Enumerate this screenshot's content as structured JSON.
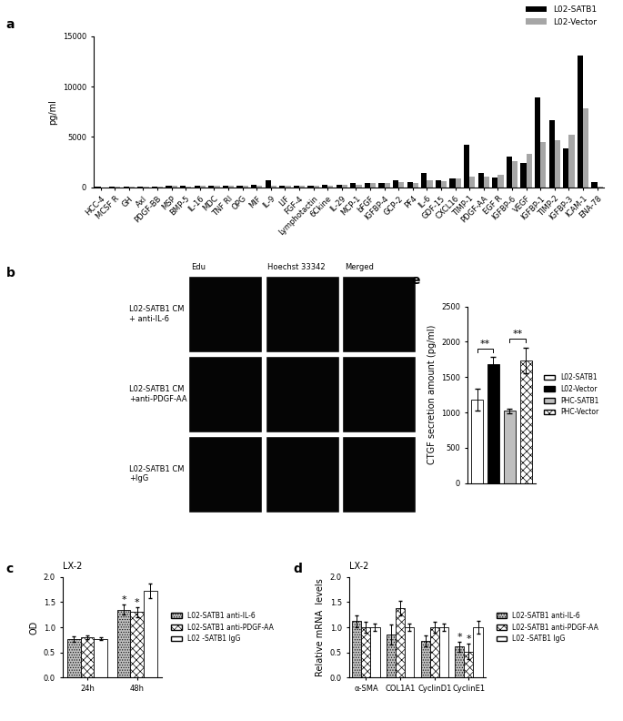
{
  "chart_data": [
    {
      "type": "bar",
      "panel": "a",
      "ylabel": "pg/ml",
      "categories": [
        "HCC-4",
        "MCSF R",
        "GH",
        "Axl",
        "PDGF-BB",
        "MSP",
        "BMP-5",
        "IL-16",
        "MDC",
        "TNF RI",
        "OPG",
        "MIF",
        "IL-9",
        "LIF",
        "FGF-4",
        "Lymphotactin",
        "6Ckine",
        "IL-29",
        "MCP-1",
        "bFGF",
        "IGFBP-4",
        "GCP-2",
        "PF4",
        "IL-6",
        "GDF-15",
        "CXCL16",
        "TIMP-1",
        "PDGF-AA",
        "EGF R",
        "IGFBP-6",
        "VEGF",
        "IGFBP-1",
        "TIMP-2",
        "IGFBP-3",
        "ICAM-1",
        "ENA-78"
      ],
      "series": [
        {
          "name": "L02-SATB1",
          "color": "#000000",
          "values": [
            50,
            80,
            60,
            100,
            100,
            200,
            150,
            200,
            200,
            150,
            200,
            300,
            700,
            200,
            200,
            200,
            250,
            250,
            450,
            400,
            450,
            750,
            550,
            1400,
            700,
            900,
            4200,
            1400,
            1000,
            3100,
            2400,
            8900,
            6700,
            3900,
            13100,
            500
          ]
        },
        {
          "name": "L02-Vector",
          "color": "#a6a6a6",
          "values": [
            30,
            50,
            40,
            80,
            80,
            150,
            120,
            150,
            150,
            150,
            150,
            200,
            150,
            150,
            200,
            200,
            200,
            300,
            300,
            400,
            450,
            550,
            400,
            700,
            600,
            900,
            1100,
            1100,
            1300,
            2600,
            3300,
            4500,
            4700,
            5200,
            7800,
            100
          ]
        }
      ],
      "ylim": [
        0,
        15000
      ],
      "yticks": [
        0,
        5000,
        10000,
        15000
      ],
      "legend": "upper right"
    },
    {
      "type": "image_grid",
      "panel": "b",
      "columns": [
        "Edu",
        "Hoechst 33342",
        "Merged"
      ],
      "rows": [
        "L02-SATB1 CM\n+ anti-IL-6",
        "L02-SATB1 CM\n+anti-PDGF-AA",
        "L02-SATB1 CM\n+IgG"
      ]
    },
    {
      "type": "bar",
      "panel": "c",
      "title": "LX-2",
      "ylabel": "OD",
      "categories": [
        "24h",
        "48h"
      ],
      "series": [
        {
          "name": "L02-SATB1 anti-IL-6",
          "color": "#bfbfbf",
          "values": [
            0.77,
            1.35
          ],
          "errors": [
            0.05,
            0.1
          ]
        },
        {
          "name": "L02-SATB1 anti-PDGF-AA",
          "color": "#ffffff",
          "values": [
            0.8,
            1.3
          ],
          "errors": [
            0.03,
            0.1
          ]
        },
        {
          "name": "L02 -SATB1 IgG",
          "color": "#ffffff",
          "values": [
            0.77,
            1.72
          ],
          "errors": [
            0.03,
            0.15
          ]
        }
      ],
      "annotations": [
        {
          "category": 1,
          "series": 0,
          "text": "*"
        },
        {
          "category": 1,
          "series": 1,
          "text": "*"
        }
      ],
      "ylim": [
        0.0,
        2.0
      ],
      "yticks": [
        0.0,
        0.5,
        1.0,
        1.5,
        2.0
      ],
      "legend": "right"
    },
    {
      "type": "bar",
      "panel": "d",
      "title": "LX-2",
      "ylabel": "Relative mRNA  levels",
      "categories": [
        "α-SMA",
        "COL1A1",
        "CyclinD1",
        "CyclinE1"
      ],
      "series": [
        {
          "name": "L02-SATB1 anti-IL-6",
          "color": "#bfbfbf",
          "values": [
            1.12,
            0.85,
            0.73,
            0.62
          ],
          "errors": [
            0.12,
            0.2,
            0.1,
            0.1
          ]
        },
        {
          "name": "L02-SATB1 anti-PDGF-AA",
          "color": "#ffffff",
          "values": [
            1.0,
            1.38,
            1.0,
            0.52
          ],
          "errors": [
            0.1,
            0.15,
            0.1,
            0.15
          ]
        },
        {
          "name": "L02 -SATB1 IgG",
          "color": "#ffffff",
          "values": [
            1.0,
            1.0,
            1.0,
            1.0
          ],
          "errors": [
            0.07,
            0.08,
            0.08,
            0.12
          ]
        }
      ],
      "annotations": [
        {
          "category": 3,
          "series": 0,
          "text": "*"
        },
        {
          "category": 3,
          "series": 1,
          "text": "*"
        }
      ],
      "ylim": [
        0.0,
        2.0
      ],
      "yticks": [
        0.0,
        0.5,
        1.0,
        1.5,
        2.0
      ],
      "legend": "right"
    },
    {
      "type": "bar",
      "panel": "e",
      "ylabel": "CTGF secretion amount (pg/ml)",
      "categories": [
        "L02-SATB1",
        "L02-Vector",
        "PHC-SATB1",
        "PHC-Vector"
      ],
      "values": [
        1180,
        1680,
        1020,
        1740
      ],
      "errors": [
        150,
        100,
        30,
        180
      ],
      "colors": [
        "#ffffff",
        "#000000",
        "#bfbfbf",
        "#ffffff"
      ],
      "brackets": [
        {
          "from": 0,
          "to": 1,
          "text": "**"
        },
        {
          "from": 2,
          "to": 3,
          "text": "**"
        }
      ],
      "ylim": [
        0,
        2500
      ],
      "yticks": [
        0,
        500,
        1000,
        1500,
        2000,
        2500
      ],
      "legend": "right",
      "tick_labels": "y"
    }
  ]
}
